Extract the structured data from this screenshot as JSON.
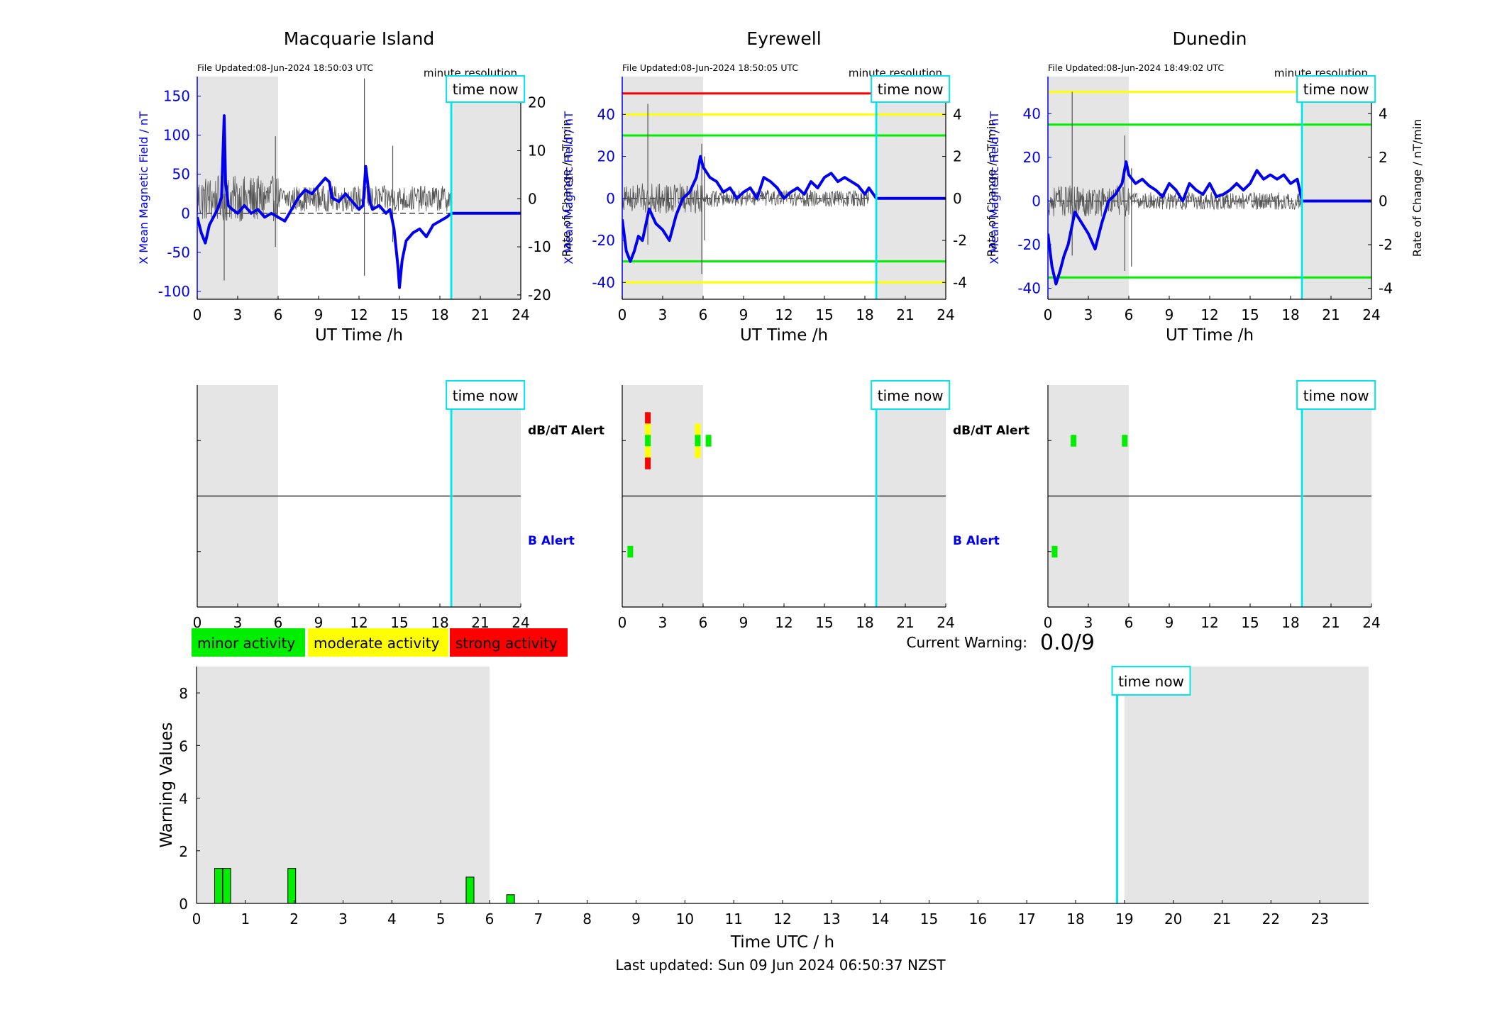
{
  "footer": {
    "last_updated": "Last updated: Sun 09 Jun 2024 06:50:37 NZST"
  },
  "common": {
    "time_now_label": "time now",
    "minute_resolution_label": "minute resolution",
    "ut_xlabel": "UT Time /h",
    "left_ylabel": "X Mean Magnetic Field / nT",
    "right_ylabel": "Rate of Change / nT/min",
    "dbdt_alert_label": "dB/dT Alert",
    "b_alert_label": "B Alert",
    "ut_ticks": [
      0,
      3,
      6,
      9,
      12,
      15,
      18,
      21,
      24
    ],
    "time_now_hour": 18.85
  },
  "legend": {
    "items": [
      {
        "label": "minor activity",
        "color": "#00ee00"
      },
      {
        "label": "moderate activity",
        "color": "#ffff00"
      },
      {
        "label": "strong activity",
        "color": "#ff0000"
      }
    ]
  },
  "current_warning": {
    "label": "Current Warning:",
    "value": "0.0/9"
  },
  "colors": {
    "field": "#0000ee",
    "rate": "#555555",
    "time_now": "#00e5ee",
    "night_shade": "#e5e5e5",
    "green": "#00ee00",
    "yellow": "#ffff00",
    "red": "#ff0000"
  },
  "chart_data": [
    {
      "type": "line",
      "title": "Macquarie Island",
      "file_updated": "File Updated:08-Jun-2024 18:50:03 UTC",
      "xlabel": "UT Time /h",
      "xlim": [
        0,
        24
      ],
      "ylabel": "X Mean Magnetic Field / nT",
      "ylim": [
        -110,
        175
      ],
      "yticks": [
        -100,
        -50,
        0,
        50,
        100,
        150
      ],
      "y2label": "Rate of Change / nT/min",
      "y2lim": [
        -20.9,
        25.4
      ],
      "y2ticks": [
        -20,
        -10,
        0,
        10,
        20
      ],
      "night_shading": [
        [
          0,
          6
        ],
        [
          19,
          24
        ]
      ],
      "thresholds": [],
      "series": [
        {
          "role": "field",
          "x": [
            0,
            0.3,
            0.6,
            0.9,
            1.2,
            1.5,
            1.8,
            2.0,
            2.1,
            2.3,
            2.6,
            3.0,
            3.5,
            4.0,
            4.5,
            5.0,
            5.5,
            6.0,
            6.5,
            7.0,
            7.5,
            8.0,
            8.5,
            9.0,
            9.5,
            9.8,
            10.0,
            10.5,
            11.0,
            11.5,
            12.0,
            12.3,
            12.5,
            12.8,
            13.0,
            13.5,
            14.0,
            14.3,
            14.6,
            14.9,
            15.0,
            15.2,
            15.5,
            16.0,
            16.5,
            17.0,
            17.5,
            18.0,
            18.5,
            18.85,
            24
          ],
          "y": [
            -5,
            -25,
            -38,
            -15,
            -5,
            5,
            20,
            125,
            40,
            10,
            5,
            0,
            10,
            0,
            5,
            -5,
            0,
            -5,
            -10,
            5,
            20,
            30,
            25,
            35,
            45,
            40,
            20,
            15,
            25,
            15,
            5,
            10,
            60,
            15,
            5,
            10,
            0,
            5,
            -20,
            -70,
            -95,
            -60,
            -35,
            -25,
            -20,
            -30,
            -15,
            -10,
            -5,
            0,
            0
          ]
        },
        {
          "role": "rate",
          "noise_amplitude": 3.0,
          "x_end": 18.85,
          "spikes": [
            {
              "x": 2.0,
              "y": 14,
              "y2": -17
            },
            {
              "x": 5.8,
              "y": 13,
              "y2": -10
            },
            {
              "x": 12.4,
              "y": 25,
              "y2": -16
            },
            {
              "x": 14.5,
              "y": 11,
              "y2": -9
            }
          ]
        }
      ]
    },
    {
      "type": "line",
      "title": "Eyrewell",
      "file_updated": "File Updated:08-Jun-2024 18:50:05 UTC",
      "xlabel": "UT Time /h",
      "xlim": [
        0,
        24
      ],
      "ylabel": "X Mean Magnetic Field / nT",
      "ylim": [
        -48,
        58
      ],
      "yticks": [
        -40,
        -20,
        0,
        20,
        40
      ],
      "y2label": "Rate of Change / nT/min",
      "y2lim": [
        -4.8,
        5.8
      ],
      "y2ticks": [
        -4,
        -2,
        0,
        2,
        4
      ],
      "night_shading": [
        [
          0,
          6
        ],
        [
          19,
          24
        ]
      ],
      "thresholds": [
        {
          "value": 50,
          "color": "#ff0000"
        },
        {
          "value": 40,
          "color": "#ffff00"
        },
        {
          "value": 30,
          "color": "#00ee00"
        },
        {
          "value": -30,
          "color": "#00ee00"
        },
        {
          "value": -40,
          "color": "#ffff00"
        }
      ],
      "series": [
        {
          "role": "field",
          "x": [
            0,
            0.3,
            0.6,
            0.9,
            1.2,
            1.5,
            2.0,
            2.5,
            3.0,
            3.5,
            4.0,
            4.5,
            5.0,
            5.5,
            5.8,
            6.0,
            6.5,
            7.0,
            7.5,
            8.0,
            8.5,
            9.0,
            9.5,
            10.0,
            10.5,
            11.0,
            11.5,
            12.0,
            12.5,
            13.0,
            13.5,
            14.0,
            14.5,
            15.0,
            15.5,
            16.0,
            16.5,
            17.0,
            17.5,
            18.0,
            18.3,
            18.85,
            24
          ],
          "y": [
            -10,
            -25,
            -30,
            -25,
            -18,
            -20,
            -5,
            -12,
            -15,
            -20,
            -8,
            0,
            3,
            10,
            20,
            15,
            10,
            8,
            3,
            5,
            0,
            3,
            5,
            0,
            10,
            8,
            5,
            0,
            3,
            5,
            2,
            8,
            5,
            10,
            12,
            8,
            10,
            8,
            6,
            2,
            5,
            0,
            0
          ]
        },
        {
          "role": "rate",
          "noise_amplitude": 0.45,
          "x_end": 18.3,
          "spikes": [
            {
              "x": 1.9,
              "y": 4.5,
              "y2": -2.2
            },
            {
              "x": 5.9,
              "y": 2.6,
              "y2": -3.6
            },
            {
              "x": 6.1,
              "y": 2.0,
              "y2": -2.0
            }
          ]
        }
      ]
    },
    {
      "type": "line",
      "title": "Dunedin",
      "file_updated": "File Updated:08-Jun-2024 18:49:02 UTC",
      "xlabel": "UT Time /h",
      "xlim": [
        0,
        24
      ],
      "ylabel": "X Mean Magnetic Field / nT",
      "ylim": [
        -45,
        57
      ],
      "yticks": [
        -40,
        -20,
        0,
        20,
        40
      ],
      "y2label": "Rate of Change / nT/min",
      "y2lim": [
        -4.5,
        5.7
      ],
      "y2ticks": [
        -4,
        -2,
        0,
        2,
        4
      ],
      "night_shading": [
        [
          0,
          6
        ],
        [
          19,
          24
        ]
      ],
      "thresholds": [
        {
          "value": 50,
          "color": "#ffff00"
        },
        {
          "value": 35,
          "color": "#00ee00"
        },
        {
          "value": -35,
          "color": "#00ee00"
        }
      ],
      "series": [
        {
          "role": "field",
          "x": [
            0,
            0.3,
            0.6,
            0.9,
            1.2,
            1.5,
            2.0,
            2.5,
            3.0,
            3.5,
            4.0,
            4.5,
            5.0,
            5.5,
            5.8,
            6.0,
            6.5,
            7.0,
            7.5,
            8.0,
            8.5,
            9.0,
            9.5,
            10.0,
            10.5,
            11.0,
            11.5,
            12.0,
            12.5,
            13.0,
            13.5,
            14.0,
            14.5,
            15.0,
            15.5,
            16.0,
            16.5,
            17.0,
            17.5,
            18.0,
            18.5,
            18.85,
            24
          ],
          "y": [
            -15,
            -30,
            -38,
            -32,
            -25,
            -20,
            -5,
            -10,
            -15,
            -22,
            -10,
            0,
            3,
            8,
            18,
            12,
            8,
            10,
            7,
            5,
            2,
            8,
            5,
            0,
            8,
            5,
            3,
            8,
            2,
            3,
            5,
            8,
            5,
            8,
            14,
            10,
            12,
            10,
            12,
            8,
            10,
            0,
            0
          ]
        },
        {
          "role": "rate",
          "noise_amplitude": 0.45,
          "x_end": 18.85,
          "spikes": [
            {
              "x": 1.8,
              "y": 5.0,
              "y2": -2.5
            },
            {
              "x": 5.7,
              "y": 3.0,
              "y2": -3.2
            },
            {
              "x": 6.2,
              "y": 1.5,
              "y2": -3.0
            }
          ]
        }
      ]
    },
    {
      "type": "bar",
      "title": "",
      "xlabel": "Time UTC / h",
      "xlim": [
        0,
        24
      ],
      "xticks": [
        0,
        1,
        2,
        3,
        4,
        5,
        6,
        7,
        8,
        9,
        10,
        11,
        12,
        13,
        14,
        15,
        16,
        17,
        18,
        19,
        20,
        21,
        22,
        23
      ],
      "ylabel": "Warning Values",
      "ylim": [
        0,
        9
      ],
      "yticks": [
        0,
        2,
        4,
        6,
        8
      ],
      "night_shading": [
        [
          0,
          6
        ],
        [
          19,
          24
        ]
      ],
      "time_now_hour": 18.85,
      "bars": [
        {
          "x": 0.45,
          "value": 1.33,
          "color": "#00ee00"
        },
        {
          "x": 0.62,
          "value": 1.33,
          "color": "#00ee00"
        },
        {
          "x": 1.95,
          "value": 1.33,
          "color": "#00ee00"
        },
        {
          "x": 5.6,
          "value": 1.0,
          "color": "#00ee00"
        },
        {
          "x": 6.43,
          "value": 0.33,
          "color": "#00ee00"
        }
      ]
    }
  ],
  "alerts": [
    {
      "station": "Macquarie Island",
      "xticks": [
        0,
        3,
        6,
        9,
        12,
        15,
        18,
        21,
        24
      ],
      "dbdt": [],
      "b": []
    },
    {
      "station": "Eyrewell",
      "xticks": [
        0,
        3,
        6,
        9,
        12,
        15,
        18,
        21,
        24
      ],
      "dbdt": [
        {
          "x": 1.9,
          "levels": [
            "red",
            "yellow",
            "green",
            "yellow",
            "red"
          ]
        },
        {
          "x": 5.6,
          "levels": [
            "yellow",
            "green",
            "yellow"
          ]
        },
        {
          "x": 6.4,
          "levels": [
            "green"
          ]
        }
      ],
      "b": [
        {
          "x": 0.6,
          "levels": [
            "green"
          ]
        }
      ]
    },
    {
      "station": "Dunedin",
      "xticks": [
        0,
        3,
        6,
        9,
        12,
        15,
        18,
        21,
        24
      ],
      "dbdt": [
        {
          "x": 1.9,
          "levels": [
            "green"
          ]
        },
        {
          "x": 5.7,
          "levels": [
            "green"
          ]
        }
      ],
      "b": [
        {
          "x": 0.5,
          "levels": [
            "green"
          ]
        }
      ]
    }
  ]
}
